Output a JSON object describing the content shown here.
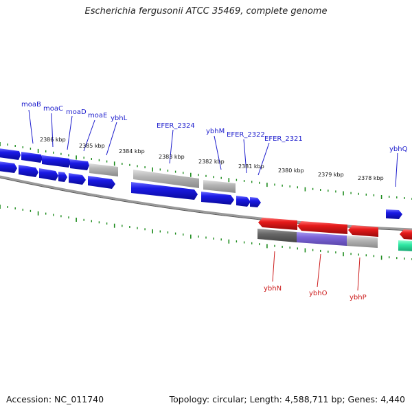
{
  "title": "Escherichia fergusonii ATCC 35469, complete genome",
  "footer": {
    "accession": "Accession: NC_011740",
    "topology": "Topology: circular; Length: 4,588,711 bp; Genes: 4,440"
  },
  "colors": {
    "forward_cds": "#1a1ae6",
    "reverse_cds": "#e61a1a",
    "gray_feature": "#b4b4b4",
    "dark_gray_feature": "#666666",
    "purple_feature": "#7a62d6",
    "green_feature": "#2ee8a4",
    "ticks": "#1a8a1a",
    "backbone": "#888888",
    "forward_label": "#1a1acc",
    "reverse_label": "#cc1a1a"
  },
  "position_labels": [
    "2386 kbp",
    "2385 kbp",
    "2384 kbp",
    "2383 kbp",
    "2382 kbp",
    "2381 kbp",
    "2380 kbp",
    "2379 kbp",
    "2378 kbp"
  ],
  "forward_gene_labels": [
    "moaB",
    "moaC",
    "moaD",
    "moaE",
    "ybhL",
    "EFER_2324",
    "ybhM",
    "EFER_2322",
    "EFER_2321",
    "ybhQ"
  ],
  "reverse_gene_labels": [
    "ybhN",
    "ybhO",
    "ybhP"
  ]
}
